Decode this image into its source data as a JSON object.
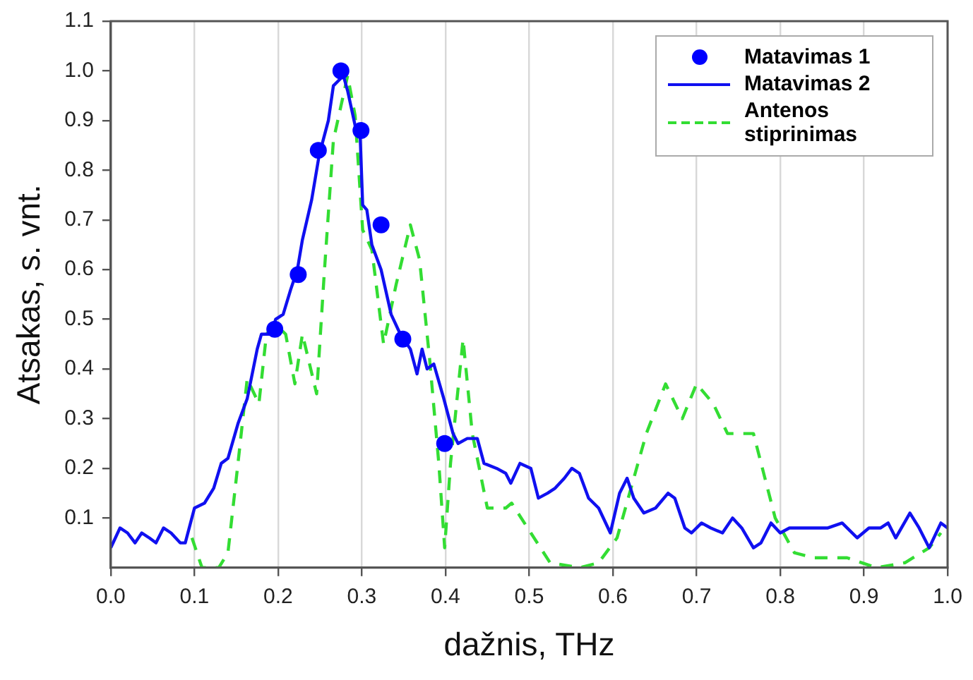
{
  "chart_data": {
    "type": "line",
    "xlabel": "dažnis, THz",
    "ylabel": "Atsakas, s. vnt.",
    "xlim": [
      0,
      1
    ],
    "ylim": [
      0,
      1.1
    ],
    "xticks": [
      {
        "value": 0,
        "label": "0.0"
      },
      0.1,
      0.2,
      0.3,
      0.4,
      0.5,
      0.6,
      0.7,
      0.8,
      0.9,
      {
        "value": 1,
        "label": "1.0"
      }
    ],
    "yticks": [
      0.1,
      0.2,
      0.3,
      0.4,
      0.5,
      0.6,
      0.7,
      0.8,
      0.9,
      {
        "value": 1,
        "label": "1.0"
      },
      1.1
    ],
    "grid": "x",
    "legend": "top right",
    "series": [
      {
        "name": "Matavimas 1",
        "type": "scatter",
        "marker": "circle",
        "color": "#0000ff",
        "x": [
          0.196,
          0.224,
          0.248,
          0.275,
          0.299,
          0.323,
          0.349,
          0.399
        ],
        "values": [
          0.48,
          0.59,
          0.84,
          1.0,
          0.88,
          0.69,
          0.46,
          0.25
        ]
      },
      {
        "name": "Matavimas 2",
        "type": "line",
        "marker": "none",
        "line_style": "solid",
        "color": "#1010f0",
        "x": [
          0,
          0.011,
          0.02,
          0.029,
          0.037,
          0.046,
          0.054,
          0.063,
          0.072,
          0.083,
          0.089,
          0.1,
          0.112,
          0.123,
          0.132,
          0.14,
          0.152,
          0.163,
          0.175,
          0.18,
          0.192,
          0.197,
          0.206,
          0.215,
          0.223,
          0.229,
          0.24,
          0.249,
          0.26,
          0.266,
          0.272,
          0.278,
          0.283,
          0.292,
          0.298,
          0.301,
          0.306,
          0.312,
          0.323,
          0.335,
          0.346,
          0.358,
          0.366,
          0.372,
          0.378,
          0.386,
          0.398,
          0.409,
          0.415,
          0.426,
          0.438,
          0.446,
          0.461,
          0.472,
          0.478,
          0.489,
          0.502,
          0.511,
          0.522,
          0.531,
          0.542,
          0.551,
          0.56,
          0.571,
          0.583,
          0.597,
          0.608,
          0.617,
          0.625,
          0.637,
          0.651,
          0.666,
          0.674,
          0.686,
          0.694,
          0.706,
          0.717,
          0.731,
          0.743,
          0.754,
          0.768,
          0.777,
          0.789,
          0.8,
          0.811,
          0.823,
          0.834,
          0.846,
          0.857,
          0.874,
          0.892,
          0.906,
          0.92,
          0.929,
          0.938,
          0.955,
          0.966,
          0.978,
          0.992,
          1.0
        ],
        "values": [
          0.04,
          0.08,
          0.07,
          0.05,
          0.07,
          0.06,
          0.05,
          0.08,
          0.07,
          0.05,
          0.05,
          0.12,
          0.13,
          0.16,
          0.21,
          0.22,
          0.29,
          0.34,
          0.44,
          0.47,
          0.47,
          0.5,
          0.51,
          0.56,
          0.6,
          0.66,
          0.74,
          0.83,
          0.9,
          0.97,
          0.98,
          0.99,
          0.96,
          0.89,
          0.87,
          0.73,
          0.72,
          0.65,
          0.6,
          0.51,
          0.47,
          0.44,
          0.39,
          0.44,
          0.4,
          0.41,
          0.34,
          0.27,
          0.25,
          0.26,
          0.26,
          0.21,
          0.2,
          0.19,
          0.17,
          0.21,
          0.2,
          0.14,
          0.15,
          0.16,
          0.18,
          0.2,
          0.19,
          0.14,
          0.12,
          0.07,
          0.15,
          0.18,
          0.14,
          0.11,
          0.12,
          0.15,
          0.14,
          0.08,
          0.07,
          0.09,
          0.08,
          0.07,
          0.1,
          0.08,
          0.04,
          0.05,
          0.09,
          0.07,
          0.08,
          0.08,
          0.08,
          0.08,
          0.08,
          0.09,
          0.06,
          0.08,
          0.08,
          0.09,
          0.06,
          0.11,
          0.08,
          0.04,
          0.09,
          0.08
        ]
      },
      {
        "name": "Antenos stiprinimas",
        "type": "line",
        "marker": "none",
        "line_style": "dashed",
        "color": "#33dd33",
        "x": [
          0.097,
          0.109,
          0.129,
          0.14,
          0.152,
          0.163,
          0.177,
          0.186,
          0.197,
          0.209,
          0.22,
          0.229,
          0.246,
          0.255,
          0.266,
          0.283,
          0.292,
          0.301,
          0.312,
          0.326,
          0.341,
          0.358,
          0.369,
          0.381,
          0.392,
          0.399,
          0.406,
          0.421,
          0.432,
          0.45,
          0.472,
          0.479,
          0.502,
          0.525,
          0.56,
          0.583,
          0.605,
          0.64,
          0.663,
          0.683,
          0.7,
          0.72,
          0.737,
          0.768,
          0.794,
          0.817,
          0.84,
          0.88,
          0.915,
          0.949,
          0.978,
          0.992
        ],
        "values": [
          0.06,
          0.0,
          0.0,
          0.03,
          0.21,
          0.38,
          0.33,
          0.47,
          0.49,
          0.47,
          0.37,
          0.47,
          0.35,
          0.59,
          0.86,
          0.99,
          0.91,
          0.68,
          0.64,
          0.45,
          0.57,
          0.69,
          0.62,
          0.42,
          0.21,
          0.04,
          0.21,
          0.46,
          0.27,
          0.12,
          0.12,
          0.13,
          0.07,
          0.01,
          0.0,
          0.01,
          0.06,
          0.27,
          0.37,
          0.3,
          0.37,
          0.33,
          0.27,
          0.27,
          0.1,
          0.03,
          0.02,
          0.02,
          0.0,
          0.01,
          0.04,
          0.07
        ]
      }
    ]
  }
}
